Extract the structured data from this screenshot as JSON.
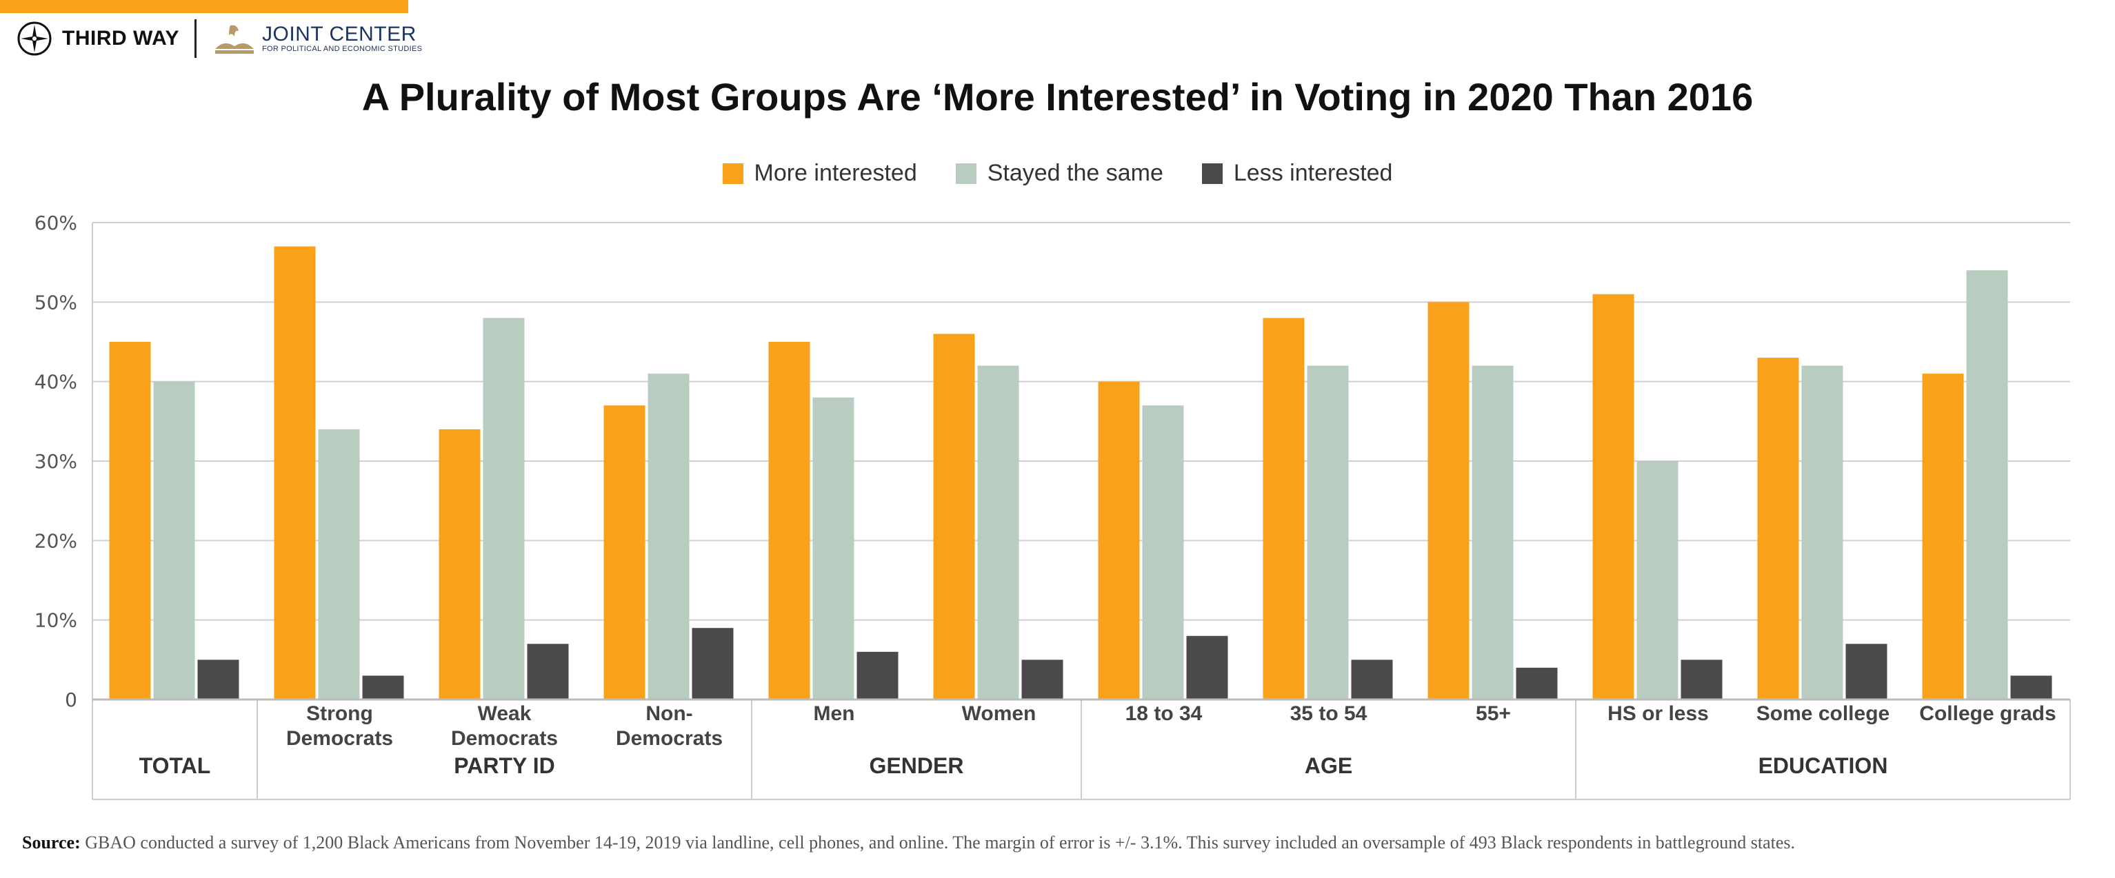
{
  "header": {
    "logo_left": "THIRD WAY",
    "logo_right_title": "JOINT CENTER",
    "logo_right_subtitle": "FOR POLITICAL AND ECONOMIC STUDIES",
    "accent": "#f9a11b"
  },
  "chart_data": {
    "type": "bar",
    "title": "A Plurality of Most Groups Are ‘More Interested’ in Voting in 2020 Than 2016",
    "categories": [
      "TOTAL",
      "Strong Democrats",
      "Weak Democrats",
      "Non-Democrats",
      "Men",
      "Women",
      "18 to 34",
      "35 to 54",
      "55+",
      "HS or less",
      "Some college",
      "College grads"
    ],
    "category_lines": [
      [
        ""
      ],
      [
        "Strong",
        "Democrats"
      ],
      [
        "Weak",
        "Democrats"
      ],
      [
        "Non-",
        "Democrats"
      ],
      [
        "Men"
      ],
      [
        "Women"
      ],
      [
        "18 to 34"
      ],
      [
        "35 to 54"
      ],
      [
        "55+"
      ],
      [
        "HS or less"
      ],
      [
        "Some college"
      ],
      [
        "College grads"
      ]
    ],
    "groups": [
      {
        "label": "TOTAL",
        "categories": [
          0
        ]
      },
      {
        "label": "PARTY ID",
        "categories": [
          1,
          2,
          3
        ]
      },
      {
        "label": "GENDER",
        "categories": [
          4,
          5
        ]
      },
      {
        "label": "AGE",
        "categories": [
          6,
          7,
          8
        ]
      },
      {
        "label": "EDUCATION",
        "categories": [
          9,
          10,
          11
        ]
      }
    ],
    "series": [
      {
        "name": "More interested",
        "color": "#f9a11b",
        "values": [
          45,
          57,
          34,
          37,
          45,
          46,
          40,
          48,
          50,
          51,
          43,
          41
        ]
      },
      {
        "name": "Stayed the same",
        "color": "#b8cdc0",
        "values": [
          40,
          34,
          48,
          41,
          38,
          42,
          37,
          42,
          42,
          30,
          42,
          54
        ]
      },
      {
        "name": "Less interested",
        "color": "#4b4b4b",
        "values": [
          5,
          3,
          7,
          9,
          6,
          5,
          8,
          5,
          4,
          5,
          7,
          3
        ]
      }
    ],
    "ylim": [
      0,
      60
    ],
    "yticks": [
      0,
      10,
      20,
      30,
      40,
      50,
      60
    ],
    "ytick_labels": [
      "0",
      "10%",
      "20%",
      "30%",
      "40%",
      "50%",
      "60%"
    ],
    "grid": true,
    "legend_placement": "top-center",
    "xlabel": "",
    "ylabel": ""
  },
  "source": {
    "label": "Source:",
    "text": " GBAO conducted a survey of 1,200 Black Americans from November 14-19, 2019 via landline, cell phones, and online. The margin of error is +/- 3.1%. This survey included an oversample of 493 Black respondents in battleground states."
  }
}
